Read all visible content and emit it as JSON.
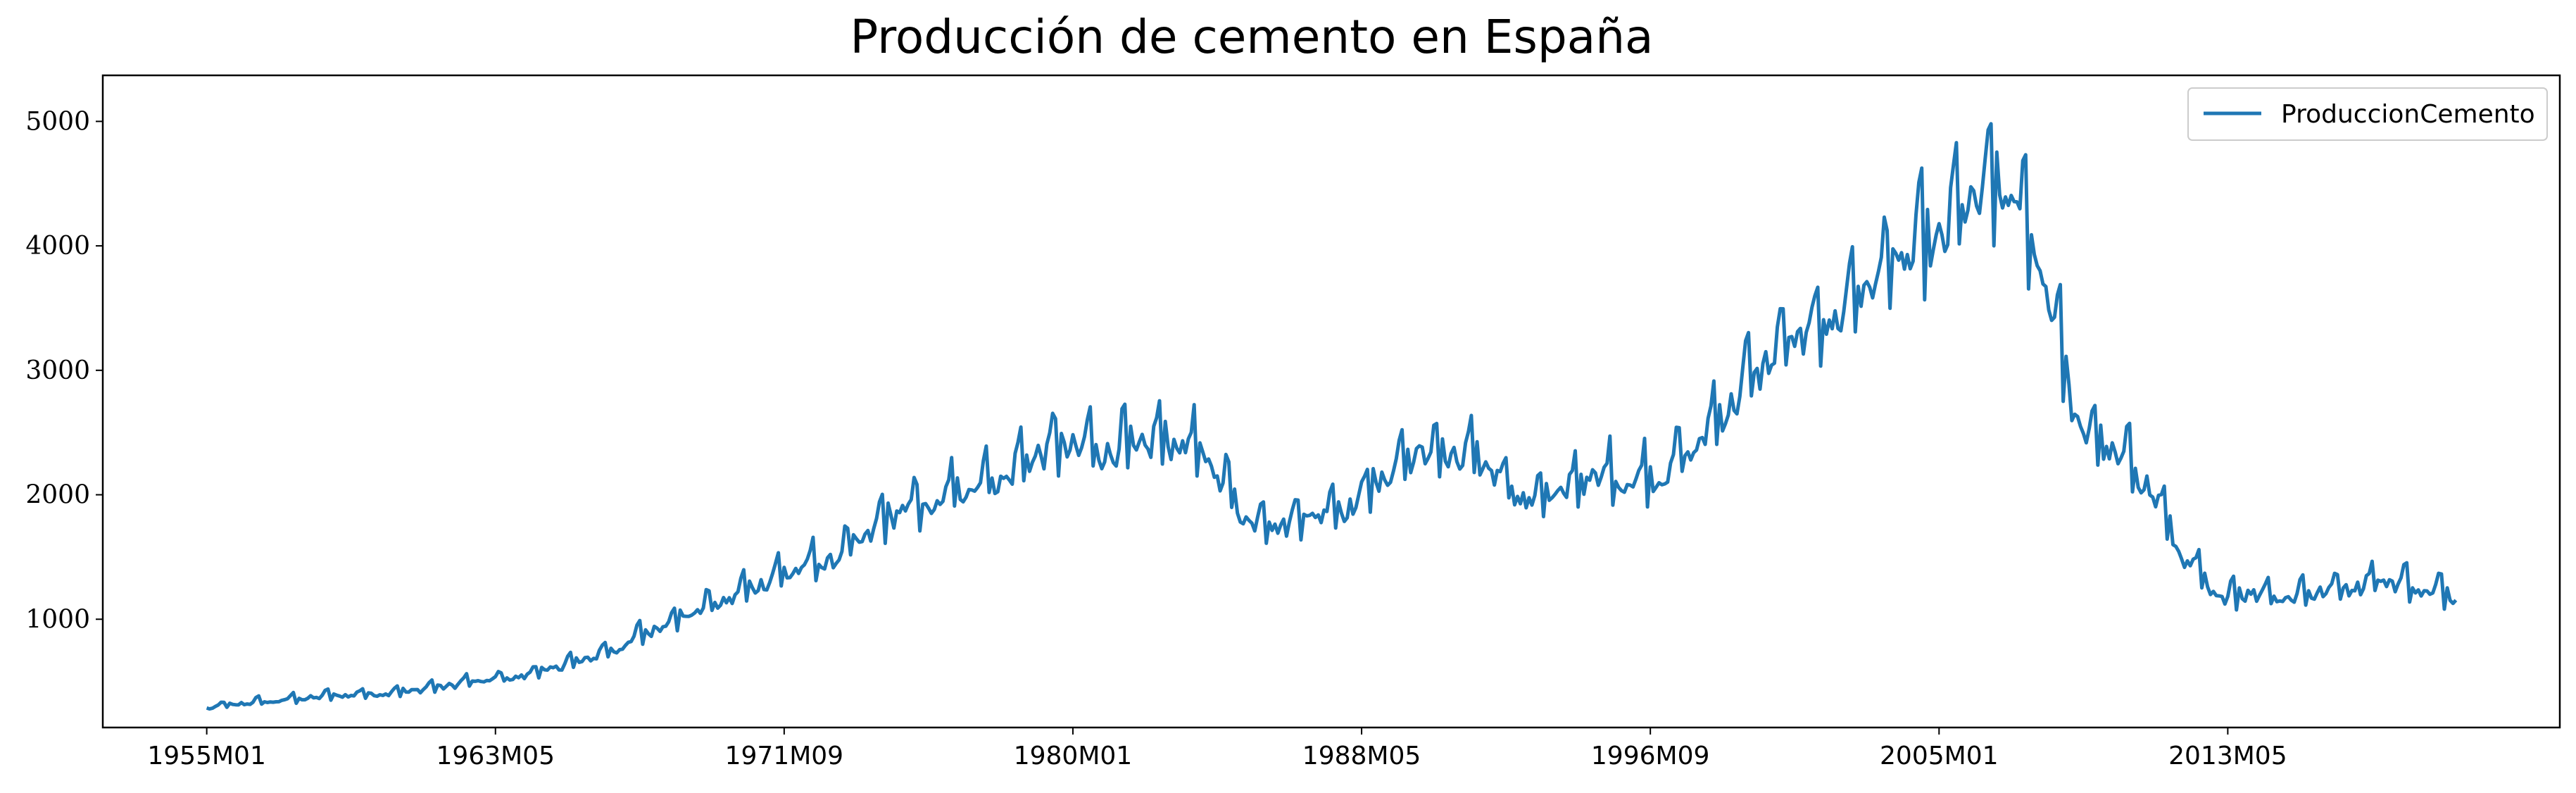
{
  "chart_data": {
    "type": "line",
    "title": "Producción de cemento en España",
    "xlabel": "",
    "ylabel": "",
    "x_start": "1955M01",
    "x_end": "2019M12",
    "xlim": [
      "1952M01",
      "2022M12"
    ],
    "ylim": [
      130,
      5370
    ],
    "x_ticks": [
      "1955M01",
      "1963M05",
      "1971M09",
      "1980M01",
      "1988M05",
      "1996M09",
      "2005M01",
      "2013M05"
    ],
    "y_ticks": [
      1000,
      2000,
      3000,
      4000,
      5000
    ],
    "grid": false,
    "legend_position": "top-right",
    "color": "#1f77b4",
    "series": [
      {
        "name": "ProduccionCemento",
        "anchors": [
          [
            "1955M01",
            290
          ],
          [
            "1956M01",
            330
          ],
          [
            "1957M01",
            350
          ],
          [
            "1958M01",
            380
          ],
          [
            "1959M01",
            400
          ],
          [
            "1960M01",
            410
          ],
          [
            "1961M01",
            440
          ],
          [
            "1962M01",
            480
          ],
          [
            "1963M01",
            520
          ],
          [
            "1964M01",
            550
          ],
          [
            "1965M01",
            620
          ],
          [
            "1966M01",
            700
          ],
          [
            "1967M01",
            800
          ],
          [
            "1968M01",
            960
          ],
          [
            "1969M01",
            1080
          ],
          [
            "1970M01",
            1180
          ],
          [
            "1971M01",
            1320
          ],
          [
            "1972M01",
            1430
          ],
          [
            "1973M01",
            1500
          ],
          [
            "1974M01",
            1700
          ],
          [
            "1975M01",
            1930
          ],
          [
            "1976M01",
            1950
          ],
          [
            "1977M01",
            2130
          ],
          [
            "1978M01",
            2180
          ],
          [
            "1979M01",
            2400
          ],
          [
            "1980M01",
            2450
          ],
          [
            "1981M01",
            2400
          ],
          [
            "1982M01",
            2450
          ],
          [
            "1983M01",
            2500
          ],
          [
            "1984M01",
            2300
          ],
          [
            "1985M01",
            1850
          ],
          [
            "1986M01",
            1800
          ],
          [
            "1987M01",
            1900
          ],
          [
            "1988M01",
            1950
          ],
          [
            "1989M01",
            2200
          ],
          [
            "1990M01",
            2400
          ],
          [
            "1991M01",
            2350
          ],
          [
            "1992M01",
            2300
          ],
          [
            "1993M01",
            2000
          ],
          [
            "1994M01",
            2050
          ],
          [
            "1995M01",
            2200
          ],
          [
            "1996M01",
            2150
          ],
          [
            "1997M01",
            2200
          ],
          [
            "1998M01",
            2450
          ],
          [
            "1999M01",
            2800
          ],
          [
            "2000M01",
            3150
          ],
          [
            "2001M01",
            3350
          ],
          [
            "2002M01",
            3500
          ],
          [
            "2003M01",
            3800
          ],
          [
            "2004M01",
            4000
          ],
          [
            "2005M01",
            4150
          ],
          [
            "2006M01",
            4500
          ],
          [
            "2007M01",
            4550
          ],
          [
            "2008M01",
            3900
          ],
          [
            "2009M01",
            2600
          ],
          [
            "2010M01",
            2400
          ],
          [
            "2011M01",
            2150
          ],
          [
            "2012M01",
            1550
          ],
          [
            "2013M01",
            1200
          ],
          [
            "2014M01",
            1250
          ],
          [
            "2015M01",
            1200
          ],
          [
            "2016M01",
            1250
          ],
          [
            "2017M01",
            1300
          ],
          [
            "2018M01",
            1350
          ],
          [
            "2019M01",
            1250
          ],
          [
            "2019M12",
            1230
          ]
        ],
        "seasonal_amplitude": 0.11
      }
    ]
  }
}
